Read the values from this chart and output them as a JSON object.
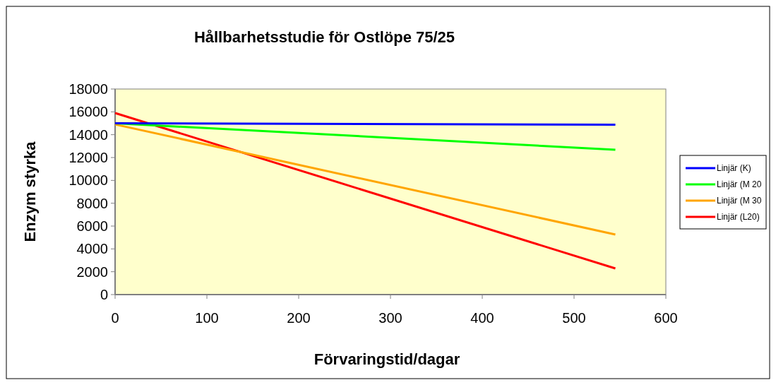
{
  "chart_data": {
    "type": "line",
    "title": "Hållbarhetsstudie för Ostlöpe 75/25",
    "xlabel": "Förvaringstid/dagar",
    "ylabel": "Enzym styrka",
    "x": [
      0,
      545
    ],
    "series": [
      {
        "name": "Linjär (K)",
        "color": "#0000ff",
        "values": [
          15000,
          14880
        ]
      },
      {
        "name": "Linjär (M 20",
        "color": "#00ff00",
        "values": [
          15000,
          12680
        ]
      },
      {
        "name": "Linjär (M 30",
        "color": "#ffa500",
        "values": [
          14900,
          5260
        ]
      },
      {
        "name": "Linjär (L20)",
        "color": "#ff0000",
        "values": [
          15900,
          2290
        ]
      }
    ],
    "xlim": [
      0,
      600
    ],
    "xticks": [
      0,
      100,
      200,
      300,
      400,
      500,
      600
    ],
    "ylim": [
      0,
      18000
    ],
    "yticks": [
      0,
      2000,
      4000,
      6000,
      8000,
      10000,
      12000,
      14000,
      16000,
      18000
    ],
    "legend": "right",
    "marker": "none",
    "line_style": "solid",
    "grid": false
  }
}
